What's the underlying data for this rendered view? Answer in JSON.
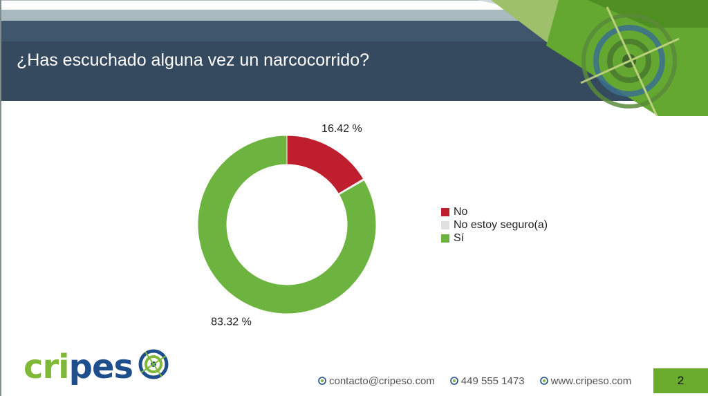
{
  "slide": {
    "title": "¿Has escuchado alguna vez un narcocorrido?",
    "page_number": "2"
  },
  "chart_data": {
    "type": "pie",
    "style": "donut",
    "categories": [
      "No",
      "No estoy seguro(a)",
      "Sí"
    ],
    "values": [
      16.42,
      0.26,
      83.32
    ],
    "data_labels": [
      "16.42 %",
      "",
      "83.32 %"
    ],
    "colors": [
      "#be1e2d",
      "#e0e0e0",
      "#6db33f"
    ],
    "legend_position": "right"
  },
  "footer": {
    "email": "contacto@cripeso.com",
    "phone": "449 555 1473",
    "website": "www.cripeso.com"
  },
  "logo": {
    "text_part1": "cri",
    "text_part2": "pes"
  },
  "colors": {
    "header_dark": "#354a5e",
    "header_strip": "#a8b9bf",
    "accent_green": "#6aab2e"
  }
}
